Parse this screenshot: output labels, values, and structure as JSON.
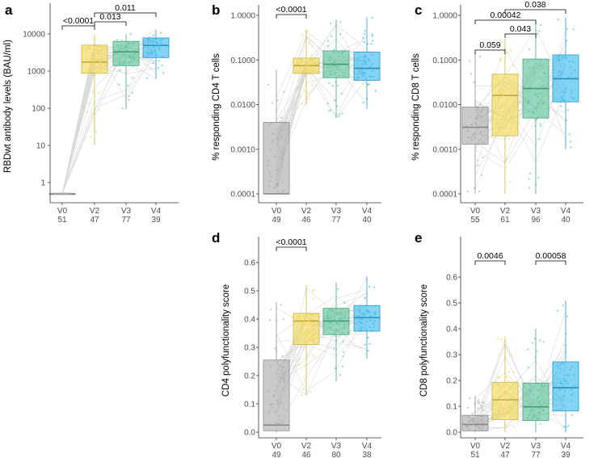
{
  "colors": {
    "V0": "#a6a6a6",
    "V2": "#f0d54b",
    "V3": "#55c193",
    "V4": "#2fb5ec"
  },
  "chart_data": [
    {
      "panel": "a",
      "type": "box",
      "scale": "log",
      "ylabel": "RBDwt antibody levels (BAU/ml)",
      "ylim": [
        0.38,
        20000
      ],
      "yticks": [
        1,
        10,
        100,
        1000,
        10000
      ],
      "yticklabels": [
        "1",
        "10",
        "100",
        "1000",
        "10000"
      ],
      "categories": [
        "V0",
        "V2",
        "V3",
        "V4"
      ],
      "n": [
        "51",
        "47",
        "77",
        "39"
      ],
      "boxes": [
        {
          "q1": 0.5,
          "median": 0.5,
          "q3": 0.5,
          "lo": 0.5,
          "hi": 0.5
        },
        {
          "q1": 870,
          "median": 1750,
          "q3": 5000,
          "lo": 10,
          "hi": 9500
        },
        {
          "q1": 1400,
          "median": 3300,
          "q3": 6300,
          "lo": 95,
          "hi": 9800
        },
        {
          "q1": 2300,
          "median": 4900,
          "q3": 7800,
          "lo": 620,
          "hi": 13000
        }
      ],
      "comparisons": [
        {
          "groups": [
            "V0",
            "V2"
          ],
          "p": "<0.0001"
        },
        {
          "groups": [
            "V2",
            "V3"
          ],
          "p": "0.013"
        },
        {
          "groups": [
            "V2",
            "V4"
          ],
          "p": "0.011"
        }
      ]
    },
    {
      "panel": "b",
      "type": "box",
      "scale": "log",
      "ylabel": "% responding CD4 T cells",
      "ylim": [
        0.0001,
        1.0
      ],
      "yticks": [
        0.0001,
        0.001,
        0.01,
        0.1,
        1.0
      ],
      "yticklabels": [
        "0.0001",
        "0.0010",
        "0.0100",
        "0.1000",
        "1.0000"
      ],
      "categories": [
        "V0",
        "V2",
        "V3",
        "V4"
      ],
      "n": [
        "49",
        "46",
        "77",
        "40"
      ],
      "boxes": [
        {
          "q1": 0.0001,
          "median": 0.0001,
          "q3": 0.004,
          "lo": 0.0001,
          "hi": 0.06
        },
        {
          "q1": 0.05,
          "median": 0.075,
          "q3": 0.11,
          "lo": 0.01,
          "hi": 0.5
        },
        {
          "q1": 0.04,
          "median": 0.08,
          "q3": 0.16,
          "lo": 0.005,
          "hi": 0.8
        },
        {
          "q1": 0.035,
          "median": 0.065,
          "q3": 0.15,
          "lo": 0.008,
          "hi": 0.9
        }
      ],
      "comparisons": [
        {
          "groups": [
            "V0",
            "V2"
          ],
          "p": "<0.0001"
        }
      ]
    },
    {
      "panel": "c",
      "type": "box",
      "scale": "log",
      "ylabel": "% responding CD8 T cells",
      "ylim": [
        0.0001,
        1.0
      ],
      "yticks": [
        0.0001,
        0.001,
        0.01,
        0.1,
        1.0
      ],
      "yticklabels": [
        "0.0001",
        "0.0010",
        "0.0100",
        "0.1000",
        "1.0000"
      ],
      "categories": [
        "V0",
        "V2",
        "V3",
        "V4"
      ],
      "n": [
        "55",
        "61",
        "96",
        "40"
      ],
      "boxes": [
        {
          "q1": 0.0013,
          "median": 0.0031,
          "q3": 0.0088,
          "lo": 0.0001,
          "hi": 0.14
        },
        {
          "q1": 0.002,
          "median": 0.016,
          "q3": 0.048,
          "lo": 0.0001,
          "hi": 0.3
        },
        {
          "q1": 0.005,
          "median": 0.023,
          "q3": 0.105,
          "lo": 0.0001,
          "hi": 0.7
        },
        {
          "q1": 0.0115,
          "median": 0.038,
          "q3": 0.13,
          "lo": 0.001,
          "hi": 0.9
        }
      ],
      "comparisons": [
        {
          "groups": [
            "V0",
            "V2"
          ],
          "p": "0.059"
        },
        {
          "groups": [
            "V2",
            "V3"
          ],
          "p": "0.043"
        },
        {
          "groups": [
            "V0",
            "V3"
          ],
          "p": "0.00042"
        },
        {
          "groups": [
            "V2",
            "V4"
          ],
          "p": "0.038"
        }
      ]
    },
    {
      "panel": "d",
      "type": "box",
      "scale": "linear",
      "ylabel": "CD4 polyfunctionality score",
      "ylim": [
        -0.01,
        0.6
      ],
      "yticks": [
        0.0,
        0.1,
        0.2,
        0.3,
        0.4,
        0.5,
        0.6
      ],
      "yticklabels": [
        "0.0",
        "0.1",
        "0.2",
        "0.3",
        "0.4",
        "0.5",
        "0.6"
      ],
      "categories": [
        "V0",
        "V2",
        "V3",
        "V4"
      ],
      "n": [
        "49",
        "46",
        "80",
        "38"
      ],
      "boxes": [
        {
          "q1": 0.005,
          "median": 0.025,
          "q3": 0.255,
          "lo": 0.0,
          "hi": 0.46
        },
        {
          "q1": 0.31,
          "median": 0.393,
          "q3": 0.42,
          "lo": 0.13,
          "hi": 0.52
        },
        {
          "q1": 0.345,
          "median": 0.393,
          "q3": 0.438,
          "lo": 0.18,
          "hi": 0.53
        },
        {
          "q1": 0.357,
          "median": 0.405,
          "q3": 0.448,
          "lo": 0.26,
          "hi": 0.55
        }
      ],
      "comparisons": [
        {
          "groups": [
            "V0",
            "V2"
          ],
          "p": "<0.0001"
        }
      ]
    },
    {
      "panel": "e",
      "type": "box",
      "scale": "linear",
      "ylabel": "CD8 polyfunctionality score",
      "ylim": [
        -0.01,
        0.66
      ],
      "yticks": [
        0.0,
        0.1,
        0.2,
        0.3,
        0.4,
        0.5,
        0.6
      ],
      "yticklabels": [
        "0.0",
        "0.1",
        "0.2",
        "0.3",
        "0.4",
        "0.5",
        "0.6"
      ],
      "categories": [
        "V0",
        "V2",
        "V3",
        "V4"
      ],
      "n": [
        "51",
        "47",
        "77",
        "39"
      ],
      "boxes": [
        {
          "q1": 0.005,
          "median": 0.03,
          "q3": 0.065,
          "lo": 0.0,
          "hi": 0.14
        },
        {
          "q1": 0.048,
          "median": 0.125,
          "q3": 0.193,
          "lo": 0.0,
          "hi": 0.37
        },
        {
          "q1": 0.045,
          "median": 0.098,
          "q3": 0.19,
          "lo": 0.0,
          "hi": 0.4
        },
        {
          "q1": 0.082,
          "median": 0.172,
          "q3": 0.272,
          "lo": 0.0,
          "hi": 0.51
        }
      ],
      "comparisons": [
        {
          "groups": [
            "V0",
            "V2"
          ],
          "p": "0.0046"
        },
        {
          "groups": [
            "V3",
            "V4"
          ],
          "p": "0.00058"
        }
      ]
    }
  ]
}
